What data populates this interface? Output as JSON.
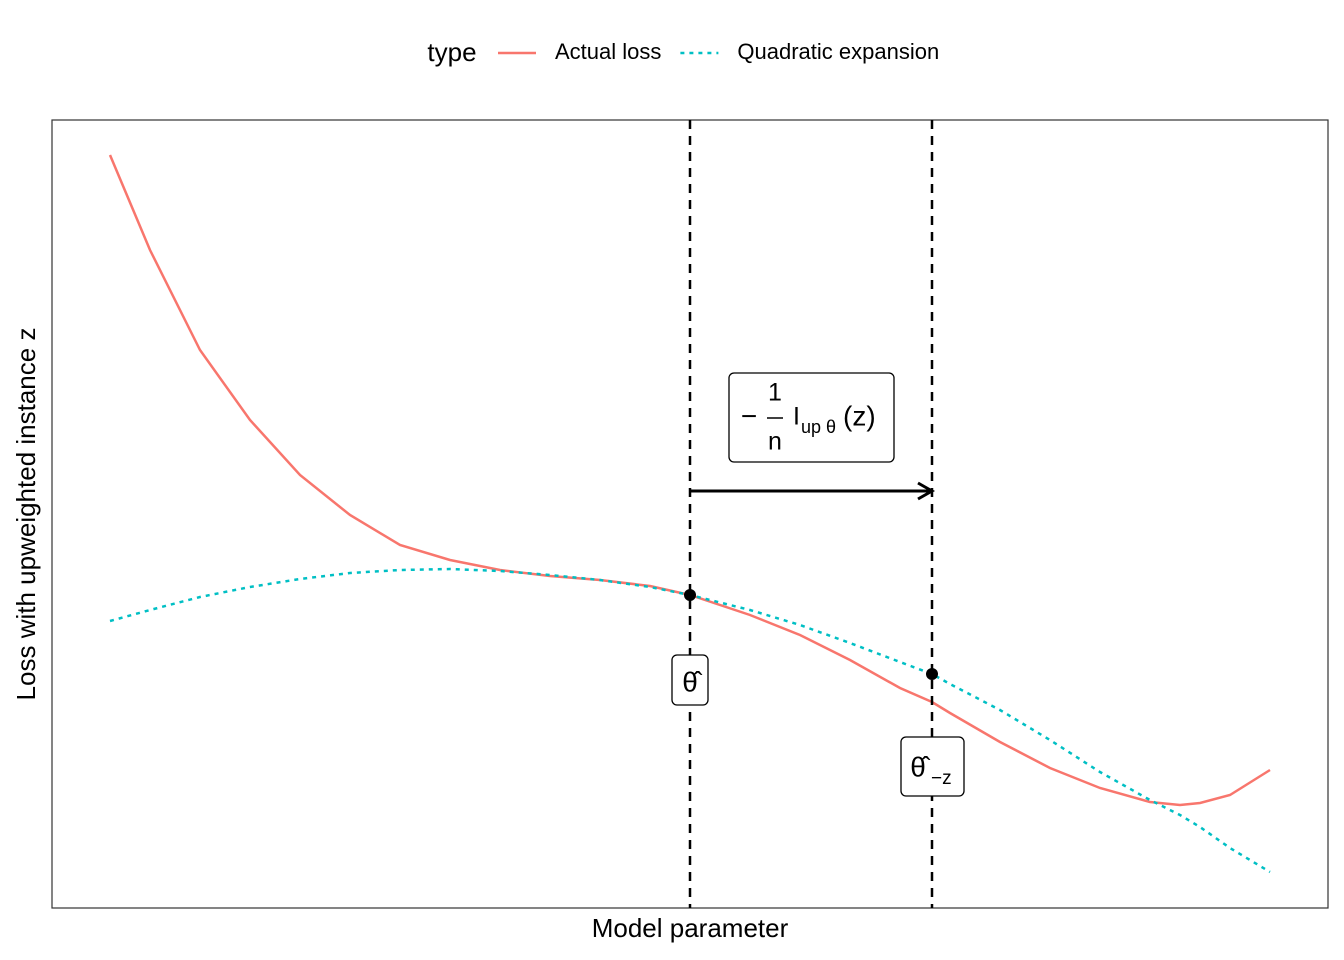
{
  "chart_data": {
    "type": "line",
    "legend_title": "type",
    "xlabel": "Model parameter",
    "ylabel": "Loss with upweighted instance z",
    "x": [
      58,
      98,
      148,
      198,
      248,
      298,
      348,
      398,
      448,
      498,
      548,
      598,
      638,
      698,
      748,
      798,
      848,
      880,
      898,
      948,
      998,
      1048,
      1098,
      1128,
      1148,
      1178,
      1218
    ],
    "series": [
      {
        "name": "Actual loss",
        "color": "#F8766D",
        "style": "solid",
        "values": [
          753,
          658,
          558,
          488,
          433,
          393,
          363,
          348,
          338,
          332,
          328,
          322,
          313,
          293,
          273,
          248,
          220,
          206,
          195,
          166,
          140,
          120,
          106,
          103,
          105,
          113,
          138
        ]
      },
      {
        "name": "Quadratic expansion",
        "color": "#00BFC4",
        "style": "dotted",
        "values": [
          287,
          298,
          311,
          321,
          329,
          335,
          338,
          339,
          337,
          333,
          328,
          321,
          313,
          298,
          283,
          265,
          246,
          234,
          224,
          198,
          168,
          136,
          108,
          93,
          81,
          60,
          36
        ]
      }
    ],
    "xlim": [
      0,
      1276
    ],
    "ylim": [
      0,
      788
    ],
    "vlines": [
      638,
      880
    ],
    "points": [
      {
        "x": 638,
        "y": 313
      },
      {
        "x": 880,
        "y": 234
      }
    ],
    "arrow": {
      "from": 638,
      "to": 880,
      "y": 417
    },
    "annotations": {
      "theta_hat": "θ̂",
      "theta_hat_minus_z": {
        "base": "θ̂",
        "subscript": "−z"
      },
      "influence": {
        "sign": "−",
        "numerator": "1",
        "denominator": "n",
        "symbol": "I",
        "subscript": "up θ",
        "argument": "(z)"
      }
    }
  }
}
